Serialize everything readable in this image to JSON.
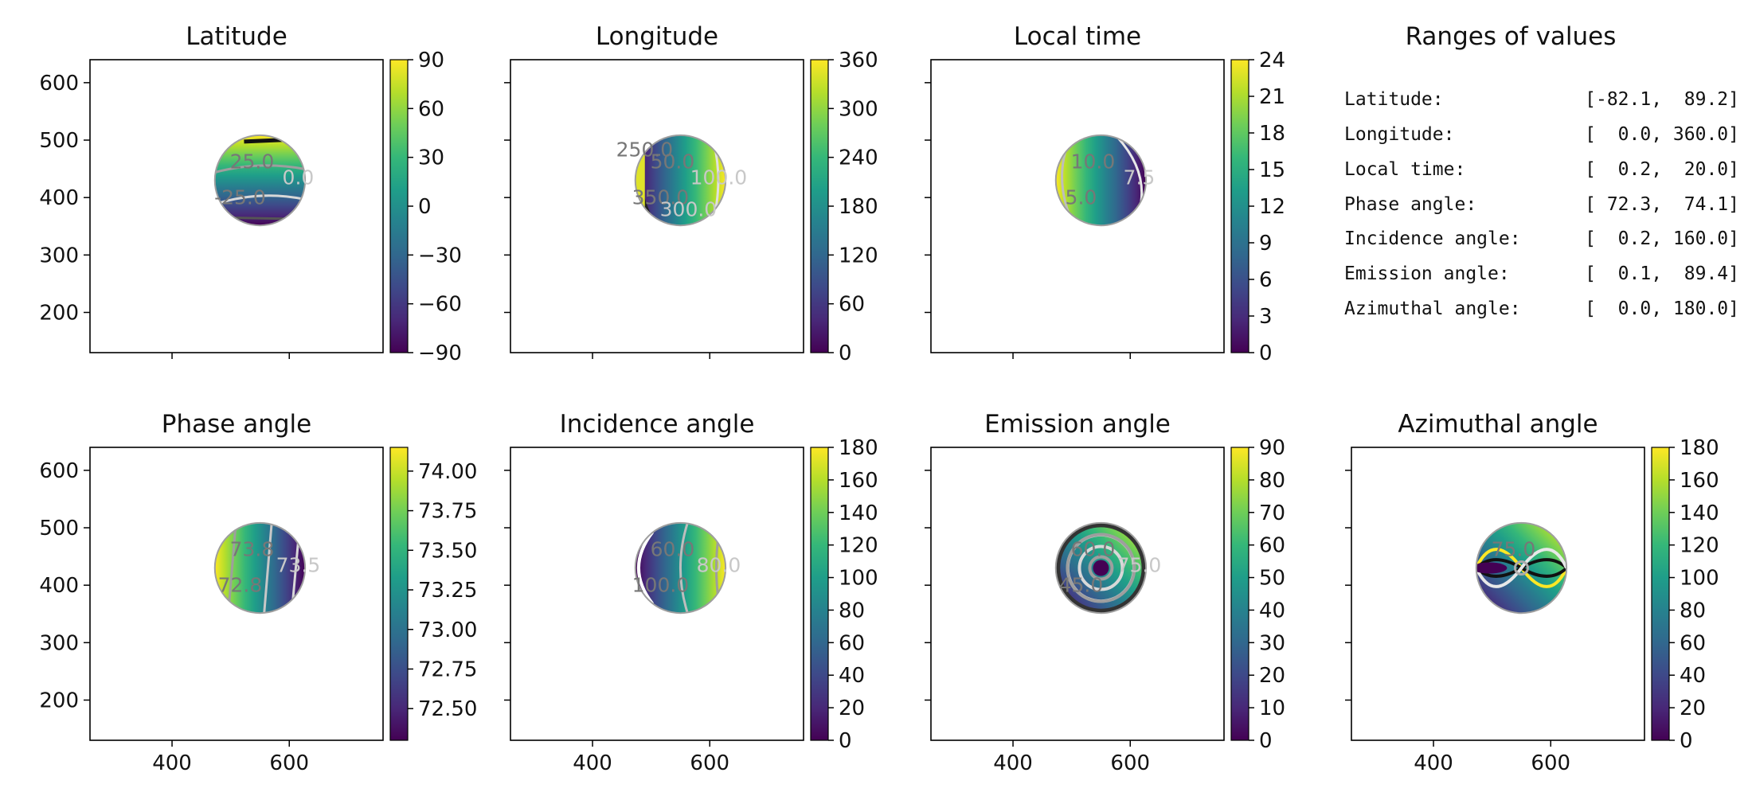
{
  "colormap": [
    "#440154",
    "#482878",
    "#3e4989",
    "#31688e",
    "#26828e",
    "#1f9e89",
    "#35b779",
    "#6ece58",
    "#b5de2b",
    "#fde725"
  ],
  "panel_titles": {
    "latitude": "Latitude",
    "longitude": "Longitude",
    "local_time": "Local time",
    "phase": "Phase angle",
    "incidence": "Incidence angle",
    "emission": "Emission angle",
    "azimuthal": "Azimuthal angle"
  },
  "chart_data": [
    {
      "type": "heatmap",
      "id": "latitude",
      "title": "Latitude",
      "xlim": [
        260,
        760
      ],
      "ylim": [
        130,
        640
      ],
      "x_ticks": [
        "400",
        "600"
      ],
      "y_ticks": [
        "200",
        "300",
        "400",
        "500",
        "600"
      ],
      "colorbar": {
        "range": [
          -90,
          90
        ],
        "ticks": [
          "−90",
          "−60",
          "−30",
          "0",
          "30",
          "60",
          "90"
        ]
      },
      "disc": {
        "center": [
          550,
          430
        ],
        "radius": 77
      },
      "data_range": [
        -82.1,
        89.2
      ],
      "contour_labels": [
        "25.0",
        "0.0",
        "-25.0"
      ]
    },
    {
      "type": "heatmap",
      "id": "longitude",
      "title": "Longitude",
      "xlim": [
        260,
        760
      ],
      "ylim": [
        130,
        640
      ],
      "x_ticks": [
        "400",
        "600"
      ],
      "y_ticks": [
        "200",
        "300",
        "400",
        "500",
        "600"
      ],
      "colorbar": {
        "range": [
          0,
          360
        ],
        "ticks": [
          "0",
          "60",
          "120",
          "180",
          "240",
          "300",
          "360"
        ]
      },
      "disc": {
        "center": [
          550,
          430
        ],
        "radius": 77
      },
      "data_range": [
        0.0,
        360.0
      ],
      "contour_labels": [
        "50.0",
        "100.0",
        "350.0",
        "300.0",
        "250.0"
      ]
    },
    {
      "type": "heatmap",
      "id": "local_time",
      "title": "Local time",
      "xlim": [
        260,
        760
      ],
      "ylim": [
        130,
        640
      ],
      "x_ticks": [
        "400",
        "600"
      ],
      "y_ticks": [
        "200",
        "300",
        "400",
        "500",
        "600"
      ],
      "colorbar": {
        "range": [
          0,
          24
        ],
        "ticks": [
          "0",
          "3",
          "6",
          "9",
          "12",
          "15",
          "18",
          "21",
          "24"
        ]
      },
      "disc": {
        "center": [
          550,
          430
        ],
        "radius": 77
      },
      "data_range": [
        0.2,
        20.0
      ],
      "contour_labels": [
        "10.0",
        "7.5",
        "5.0"
      ]
    },
    {
      "type": "heatmap",
      "id": "phase",
      "title": "Phase angle",
      "xlim": [
        260,
        760
      ],
      "ylim": [
        130,
        640
      ],
      "x_ticks": [
        "400",
        "600"
      ],
      "y_ticks": [
        "200",
        "300",
        "400",
        "500",
        "600"
      ],
      "colorbar": {
        "range": [
          72.3,
          74.15
        ],
        "tick_values": [
          72.5,
          72.75,
          73.0,
          73.25,
          73.5,
          73.75,
          74.0
        ],
        "ticks": [
          "72.50",
          "72.75",
          "73.00",
          "73.25",
          "73.50",
          "73.75",
          "74.00"
        ]
      },
      "disc": {
        "center": [
          550,
          430
        ],
        "radius": 77
      },
      "data_range": [
        72.3,
        74.1
      ],
      "contour_labels": [
        "73.8",
        "73.5",
        "72.8"
      ]
    },
    {
      "type": "heatmap",
      "id": "incidence",
      "title": "Incidence angle",
      "xlim": [
        260,
        760
      ],
      "ylim": [
        130,
        640
      ],
      "x_ticks": [
        "400",
        "600"
      ],
      "y_ticks": [
        "200",
        "300",
        "400",
        "500",
        "600"
      ],
      "colorbar": {
        "range": [
          0,
          180
        ],
        "ticks": [
          "0",
          "20",
          "40",
          "60",
          "80",
          "100",
          "120",
          "140",
          "160",
          "180"
        ]
      },
      "disc": {
        "center": [
          550,
          430
        ],
        "radius": 77
      },
      "data_range": [
        0.2,
        160.0
      ],
      "contour_labels": [
        "60.0",
        "80.0",
        "100.0"
      ]
    },
    {
      "type": "heatmap",
      "id": "emission",
      "title": "Emission angle",
      "xlim": [
        260,
        760
      ],
      "ylim": [
        130,
        640
      ],
      "x_ticks": [
        "400",
        "600"
      ],
      "y_ticks": [
        "200",
        "300",
        "400",
        "500",
        "600"
      ],
      "colorbar": {
        "range": [
          0,
          90
        ],
        "ticks": [
          "0",
          "10",
          "20",
          "30",
          "40",
          "50",
          "60",
          "70",
          "80",
          "90"
        ]
      },
      "disc": {
        "center": [
          550,
          430
        ],
        "radius": 77
      },
      "data_range": [
        0.1,
        89.4
      ],
      "contour_labels": [
        "60.0",
        "75.0",
        "45.0"
      ]
    },
    {
      "type": "heatmap",
      "id": "azimuthal",
      "title": "Azimuthal angle",
      "xlim": [
        260,
        760
      ],
      "ylim": [
        130,
        640
      ],
      "x_ticks": [
        "400",
        "600"
      ],
      "y_ticks": [
        "200",
        "300",
        "400",
        "500",
        "600"
      ],
      "colorbar": {
        "range": [
          0,
          180
        ],
        "ticks": [
          "0",
          "20",
          "40",
          "60",
          "80",
          "100",
          "120",
          "140",
          "160",
          "180"
        ]
      },
      "disc": {
        "center": [
          550,
          430
        ],
        "radius": 77
      },
      "data_range": [
        0.0,
        180.0
      ],
      "contour_labels": [
        "75.0"
      ]
    }
  ],
  "ranges_panel": {
    "title": "Ranges of values",
    "rows": [
      {
        "label": "Latitude:",
        "value": "[-82.1,  89.2]"
      },
      {
        "label": "Longitude:",
        "value": "[  0.0, 360.0]"
      },
      {
        "label": "Local time:",
        "value": "[  0.2,  20.0]"
      },
      {
        "label": "Phase angle:",
        "value": "[ 72.3,  74.1]"
      },
      {
        "label": "Incidence angle:",
        "value": "[  0.2, 160.0]"
      },
      {
        "label": "Emission angle:",
        "value": "[  0.1,  89.4]"
      },
      {
        "label": "Azimuthal angle:",
        "value": "[  0.0, 180.0]"
      }
    ]
  }
}
